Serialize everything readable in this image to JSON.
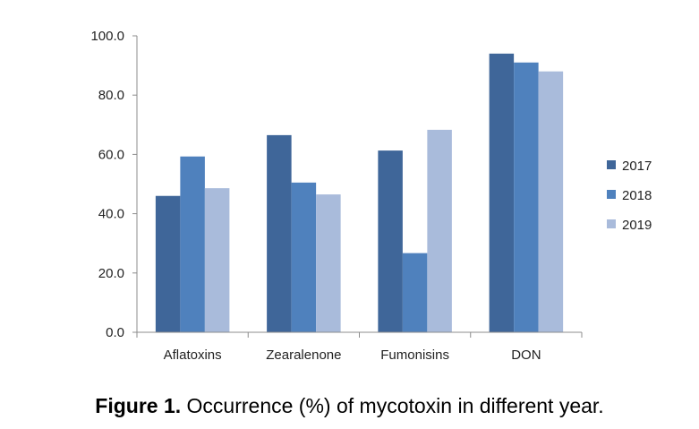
{
  "chart_data": {
    "type": "bar",
    "categories": [
      "Aflatoxins",
      "Zearalenone",
      "Fumonisins",
      "DON"
    ],
    "series": [
      {
        "name": "2017",
        "color": "#3f6699",
        "values": [
          46,
          66.5,
          61.3,
          94
        ]
      },
      {
        "name": "2018",
        "color": "#4f81bd",
        "values": [
          59.3,
          50.5,
          26.7,
          91
        ]
      },
      {
        "name": "2019",
        "color": "#a9bbdb",
        "values": [
          48.6,
          46.5,
          68.3,
          88
        ]
      }
    ],
    "ylim": [
      0,
      100
    ],
    "yticks": [
      "0.0",
      "20.0",
      "40.0",
      "60.0",
      "80.0",
      "100.0"
    ],
    "legend": "right",
    "grid": false
  },
  "caption": {
    "label": "Figure 1.",
    "text": " Occurrence (%) of mycotoxin in different year."
  }
}
